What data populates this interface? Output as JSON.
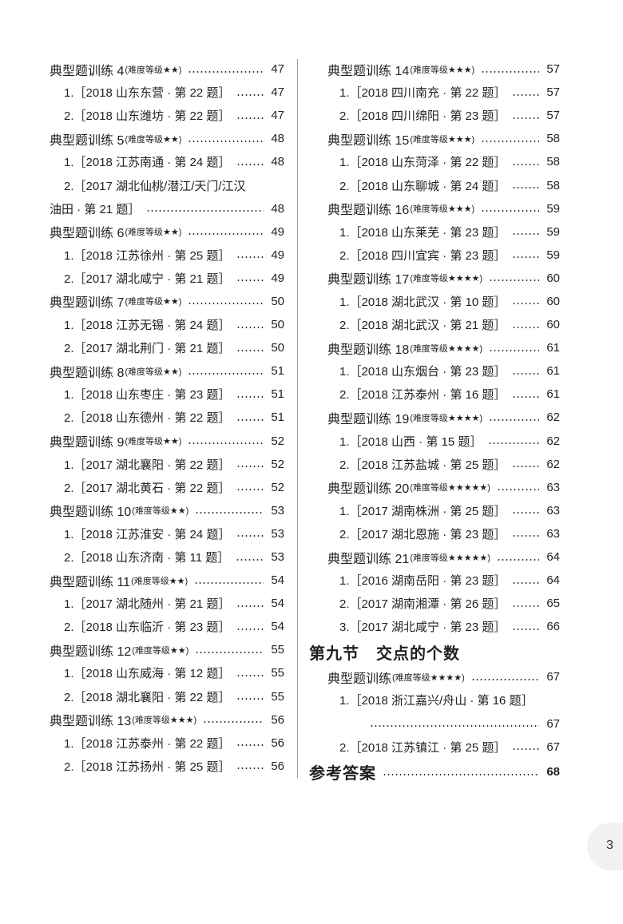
{
  "left": [
    {
      "t": "h",
      "label": "典型题训练 4",
      "diff": "(难度等级★★)",
      "page": "47"
    },
    {
      "t": "i",
      "text": "1.［2018 山东东营 · 第 22 题］",
      "page": "47"
    },
    {
      "t": "i",
      "text": "2.［2018 山东潍坊 · 第 22 题］",
      "page": "47"
    },
    {
      "t": "h",
      "label": "典型题训练 5",
      "diff": "(难度等级★★)",
      "page": "48"
    },
    {
      "t": "i",
      "text": "1.［2018 江苏南通 · 第 24 题］",
      "page": "48"
    },
    {
      "t": "w",
      "text": "2.［2017 湖北仙桃/潜江/天门/江汉"
    },
    {
      "t": "c",
      "text": "油田 · 第 21 题］",
      "page": "48"
    },
    {
      "t": "h",
      "label": "典型题训练 6",
      "diff": "(难度等级★★)",
      "page": "49"
    },
    {
      "t": "i",
      "text": "1.［2018 江苏徐州 · 第 25 题］",
      "page": "49"
    },
    {
      "t": "i",
      "text": "2.［2017 湖北咸宁 · 第 21 题］",
      "page": "49"
    },
    {
      "t": "h",
      "label": "典型题训练 7",
      "diff": "(难度等级★★)",
      "page": "50"
    },
    {
      "t": "i",
      "text": "1.［2018 江苏无锡 · 第 24 题］",
      "page": "50"
    },
    {
      "t": "i",
      "text": "2.［2017 湖北荆门 · 第 21 题］",
      "page": "50"
    },
    {
      "t": "h",
      "label": "典型题训练 8",
      "diff": "(难度等级★★)",
      "page": "51"
    },
    {
      "t": "i",
      "text": "1.［2018 山东枣庄 · 第 23 题］",
      "page": "51"
    },
    {
      "t": "i",
      "text": "2.［2018 山东德州 · 第 22 题］",
      "page": "51"
    },
    {
      "t": "h",
      "label": "典型题训练 9",
      "diff": "(难度等级★★)",
      "page": "52"
    },
    {
      "t": "i",
      "text": "1.［2017 湖北襄阳 · 第 22 题］",
      "page": "52"
    },
    {
      "t": "i",
      "text": "2.［2017 湖北黄石 · 第 22 题］",
      "page": "52"
    },
    {
      "t": "h",
      "label": "典型题训练 10",
      "diff": "(难度等级★★)",
      "page": "53"
    },
    {
      "t": "i",
      "text": "1.［2018 江苏淮安 · 第 24 题］",
      "page": "53"
    },
    {
      "t": "i",
      "text": "2.［2018 山东济南 · 第 11 题］",
      "page": "53"
    },
    {
      "t": "h",
      "label": "典型题训练 11",
      "diff": "(难度等级★★)",
      "page": "54"
    },
    {
      "t": "i",
      "text": "1.［2017 湖北随州 · 第 21 题］",
      "page": "54"
    },
    {
      "t": "i",
      "text": "2.［2018 山东临沂 · 第 23 题］",
      "page": "54"
    },
    {
      "t": "h",
      "label": "典型题训练 12",
      "diff": "(难度等级★★)",
      "page": "55"
    },
    {
      "t": "i",
      "text": "1.［2018 山东威海 · 第 12 题］",
      "page": "55"
    },
    {
      "t": "i",
      "text": "2.［2018 湖北襄阳 · 第 22 题］",
      "page": "55"
    },
    {
      "t": "h",
      "label": "典型题训练 13",
      "diff": "(难度等级★★★)",
      "page": "56"
    },
    {
      "t": "i",
      "text": "1.［2018 江苏泰州 · 第 22 题］",
      "page": "56"
    },
    {
      "t": "i",
      "text": "2.［2018 江苏扬州 · 第 25 题］",
      "page": "56"
    }
  ],
  "right": [
    {
      "t": "h",
      "label": "典型题训练 14",
      "diff": "(难度等级★★★)",
      "page": "57"
    },
    {
      "t": "i",
      "text": "1.［2018 四川南充 · 第 22 题］",
      "page": "57"
    },
    {
      "t": "i",
      "text": "2.［2018 四川绵阳 · 第 23 题］",
      "page": "57"
    },
    {
      "t": "h",
      "label": "典型题训练 15",
      "diff": "(难度等级★★★)",
      "page": "58"
    },
    {
      "t": "i",
      "text": "1.［2018 山东菏泽 · 第 22 题］",
      "page": "58"
    },
    {
      "t": "i",
      "text": "2.［2018 山东聊城 · 第 24 题］",
      "page": "58"
    },
    {
      "t": "h",
      "label": "典型题训练 16",
      "diff": "(难度等级★★★)",
      "page": "59"
    },
    {
      "t": "i",
      "text": "1.［2018 山东莱芜 · 第 23 题］",
      "page": "59"
    },
    {
      "t": "i",
      "text": "2.［2018 四川宜宾 · 第 23 题］",
      "page": "59"
    },
    {
      "t": "h",
      "label": "典型题训练 17",
      "diff": "(难度等级★★★★)",
      "page": "60"
    },
    {
      "t": "i",
      "text": "1.［2018 湖北武汉 · 第 10 题］",
      "page": "60"
    },
    {
      "t": "i",
      "text": "2.［2018 湖北武汉 · 第 21 题］",
      "page": "60"
    },
    {
      "t": "h",
      "label": "典型题训练 18",
      "diff": "(难度等级★★★★)",
      "page": "61"
    },
    {
      "t": "i",
      "text": "1.［2018 山东烟台 · 第 23 题］",
      "page": "61"
    },
    {
      "t": "i",
      "text": "2.［2018 江苏泰州 · 第 16 题］",
      "page": "61"
    },
    {
      "t": "h",
      "label": "典型题训练 19",
      "diff": "(难度等级★★★★)",
      "page": "62"
    },
    {
      "t": "i",
      "text": "1.［2018 山西 · 第 15 题］",
      "page": "62"
    },
    {
      "t": "i",
      "text": "2.［2018 江苏盐城 · 第 25 题］",
      "page": "62"
    },
    {
      "t": "h",
      "label": "典型题训练 20",
      "diff": "(难度等级★★★★★)",
      "page": "63"
    },
    {
      "t": "i",
      "text": "1.［2017 湖南株洲 · 第 25 题］",
      "page": "63"
    },
    {
      "t": "i",
      "text": "2.［2017 湖北恩施 · 第 23 题］",
      "page": "63"
    },
    {
      "t": "h",
      "label": "典型题训练 21",
      "diff": "(难度等级★★★★★)",
      "page": "64"
    },
    {
      "t": "i",
      "text": "1.［2016 湖南岳阳 · 第 23 题］",
      "page": "64"
    },
    {
      "t": "i",
      "text": "2.［2017 湖南湘潭 · 第 26 题］",
      "page": "65"
    },
    {
      "t": "i",
      "text": "3.［2017 湖北咸宁 · 第 23 题］",
      "page": "66"
    },
    {
      "t": "s",
      "label": "第九节　交点的个数"
    },
    {
      "t": "h",
      "label": "典型题训练",
      "diff": "(难度等级★★★★)",
      "page": "67"
    },
    {
      "t": "w",
      "text": "1.［2018 浙江嘉兴/舟山 · 第 16 题］"
    },
    {
      "t": "c",
      "text": "",
      "page": "67"
    },
    {
      "t": "i",
      "text": "2.［2018 江苏镇江 · 第 25 题］",
      "page": "67"
    },
    {
      "t": "s",
      "label": "参考答案",
      "page": "68"
    }
  ],
  "page_number": "3"
}
